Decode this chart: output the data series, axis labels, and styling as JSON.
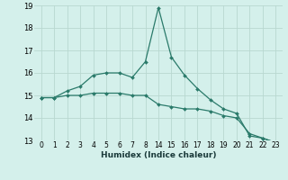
{
  "line1_positions": [
    0,
    1,
    2,
    3,
    4,
    5,
    6,
    7,
    8,
    9,
    10,
    11,
    12,
    13,
    14,
    15,
    16,
    17,
    18
  ],
  "line1_y": [
    14.9,
    14.9,
    15.2,
    15.4,
    15.9,
    16.0,
    16.0,
    15.8,
    16.5,
    18.9,
    16.7,
    15.9,
    15.3,
    14.8,
    14.4,
    14.2,
    13.2,
    13.1,
    12.9
  ],
  "line2_positions": [
    0,
    1,
    2,
    3,
    4,
    5,
    6,
    7,
    8,
    9,
    10,
    11,
    12,
    13,
    14,
    15,
    16,
    17,
    18
  ],
  "line2_y": [
    14.9,
    14.9,
    15.0,
    15.0,
    15.1,
    15.1,
    15.1,
    15.0,
    15.0,
    14.6,
    14.5,
    14.4,
    14.4,
    14.3,
    14.1,
    14.0,
    13.3,
    13.1,
    12.9
  ],
  "xtick_positions": [
    0,
    1,
    2,
    3,
    4,
    5,
    6,
    7,
    8,
    9,
    10,
    11,
    12,
    13,
    14,
    15,
    16,
    17,
    18
  ],
  "xtick_labels": [
    "0",
    "1",
    "2",
    "3",
    "4",
    "5",
    "6",
    "7",
    "8",
    "14",
    "15",
    "16",
    "17",
    "18",
    "19",
    "20",
    "21",
    "22",
    "23"
  ],
  "line_color": "#2a7a6a",
  "bg_color": "#d4f0eb",
  "grid_color": "#b8d8d0",
  "xlabel": "Humidex (Indice chaleur)",
  "xlim": [
    -0.5,
    18.5
  ],
  "ylim": [
    13.0,
    19.0
  ],
  "yticks": [
    13,
    14,
    15,
    16,
    17,
    18,
    19
  ]
}
